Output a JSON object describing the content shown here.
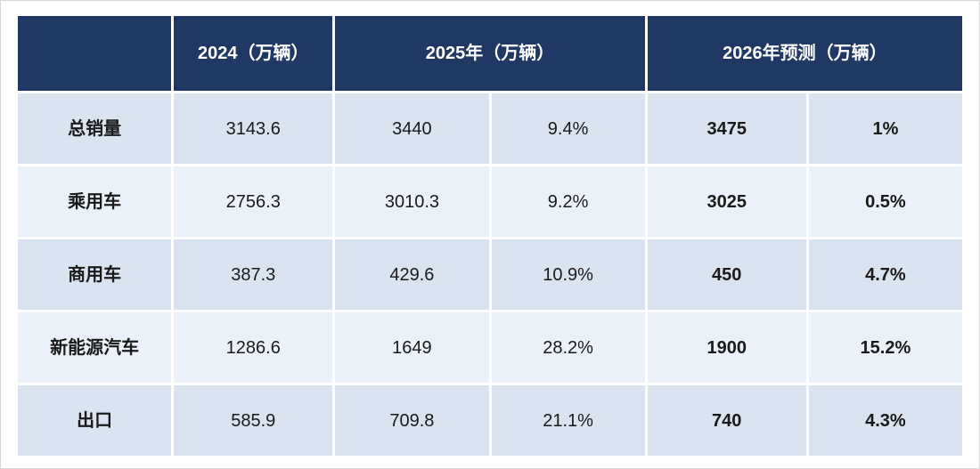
{
  "chart_data": {
    "type": "table",
    "title": "",
    "header": {
      "corner": "",
      "col_2024": "2024（万辆）",
      "col_2025": "2025年（万辆）",
      "col_2026": "2026年预测（万辆）"
    },
    "rows": [
      {
        "label": "总销量",
        "v2024": "3143.6",
        "v2025": "3440",
        "g2025": "9.4%",
        "v2026": "3475",
        "g2026": "1%"
      },
      {
        "label": "乘用车",
        "v2024": "2756.3",
        "v2025": "3010.3",
        "g2025": "9.2%",
        "v2026": "3025",
        "g2026": "0.5%"
      },
      {
        "label": "商用车",
        "v2024": "387.3",
        "v2025": "429.6",
        "g2025": "10.9%",
        "v2026": "450",
        "g2026": "4.7%"
      },
      {
        "label": "新能源汽车",
        "v2024": "1286.6",
        "v2025": "1649",
        "g2025": "28.2%",
        "v2026": "1900",
        "g2026": "15.2%"
      },
      {
        "label": "出口",
        "v2024": "585.9",
        "v2025": "709.8",
        "g2025": "21.1%",
        "v2026": "740",
        "g2026": "4.3%"
      }
    ]
  },
  "colors": {
    "header_bg": "#1f3864",
    "row_odd_bg": "#dae3f0",
    "row_even_bg": "#ebf1f8",
    "header_text": "#ffffff",
    "body_text": "#1a1a1a",
    "frame_border": "#d8d8d8"
  }
}
